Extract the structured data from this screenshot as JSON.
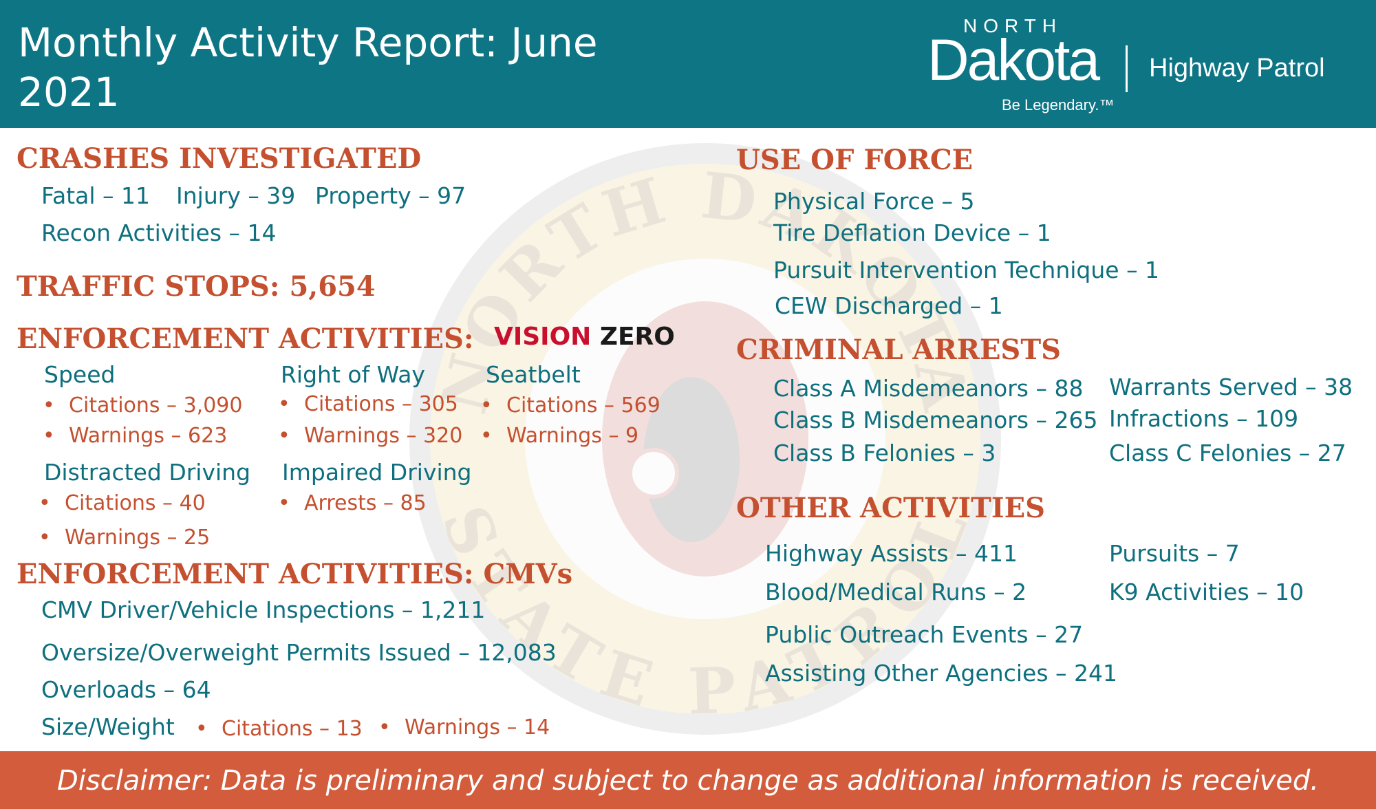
{
  "header": {
    "title": "Monthly Activity Report: June 2021",
    "logo": {
      "north": "NORTH",
      "dakota": "Dakota",
      "tagline": "Be Legendary.™",
      "agency": "Highway Patrol"
    }
  },
  "crashes": {
    "heading": "CRASHES INVESTIGATED",
    "fatal": "Fatal – 11",
    "injury": "Injury – 39",
    "property": "Property – 97",
    "recon": "Recon Activities – 14"
  },
  "traffic_stops": {
    "heading": "TRAFFIC STOPS: 5,654"
  },
  "enforcement": {
    "heading": "ENFORCEMENT ACTIVITIES:",
    "vision_zero": {
      "vision": "VISION",
      "zero": "ZERO"
    },
    "speed": {
      "label": "Speed",
      "citations": "Citations – 3,090",
      "warnings": "Warnings – 623"
    },
    "right_of_way": {
      "label": "Right of Way",
      "citations": "Citations – 305",
      "warnings": "Warnings – 320"
    },
    "seatbelt": {
      "label": "Seatbelt",
      "citations": "Citations – 569",
      "warnings": "Warnings – 9"
    },
    "distracted": {
      "label": "Distracted Driving",
      "citations": "Citations – 40",
      "warnings": "Warnings – 25"
    },
    "impaired": {
      "label": "Impaired Driving",
      "arrests": "Arrests – 85"
    }
  },
  "cmv": {
    "heading": "ENFORCEMENT ACTIVITIES: CMVs",
    "inspections": "CMV Driver/Vehicle Inspections – 1,211",
    "permits": "Oversize/Overweight Permits Issued – 12,083",
    "overloads": "Overloads – 64",
    "size_weight": {
      "label": "Size/Weight",
      "citations": "Citations – 13",
      "warnings": "Warnings – 14"
    }
  },
  "use_of_force": {
    "heading": "USE OF FORCE",
    "items": [
      "Physical Force – 5",
      "Tire Deflation Device – 1",
      "Pursuit Intervention Technique – 1",
      "CEW Discharged – 1"
    ]
  },
  "arrests": {
    "heading": "CRIMINAL ARRESTS",
    "left": [
      "Class A Misdemeanors – 88",
      "Class B Misdemeanors – 265",
      "Class B Felonies – 3"
    ],
    "right": [
      "Warrants Served – 38",
      "Infractions – 109",
      "Class C Felonies – 27"
    ]
  },
  "other": {
    "heading": "OTHER ACTIVITIES",
    "left": [
      "Highway Assists – 411",
      "Blood/Medical Runs – 2",
      "Public Outreach Events –  27",
      "Assisting Other Agencies – 241"
    ],
    "right": [
      "Pursuits – 7",
      "K9 Activities – 10"
    ]
  },
  "watermark": {
    "top_text": "NORTH DAKOTA",
    "bottom_text": "STATE PATROL"
  },
  "footer": {
    "disclaimer": "Disclaimer: Data is preliminary and subject to change as additional information is received."
  },
  "colors": {
    "header_bg": "#0e7585",
    "heading": "#c4502f",
    "text": "#0e6f7e",
    "footer_bg": "#d25c3c"
  }
}
